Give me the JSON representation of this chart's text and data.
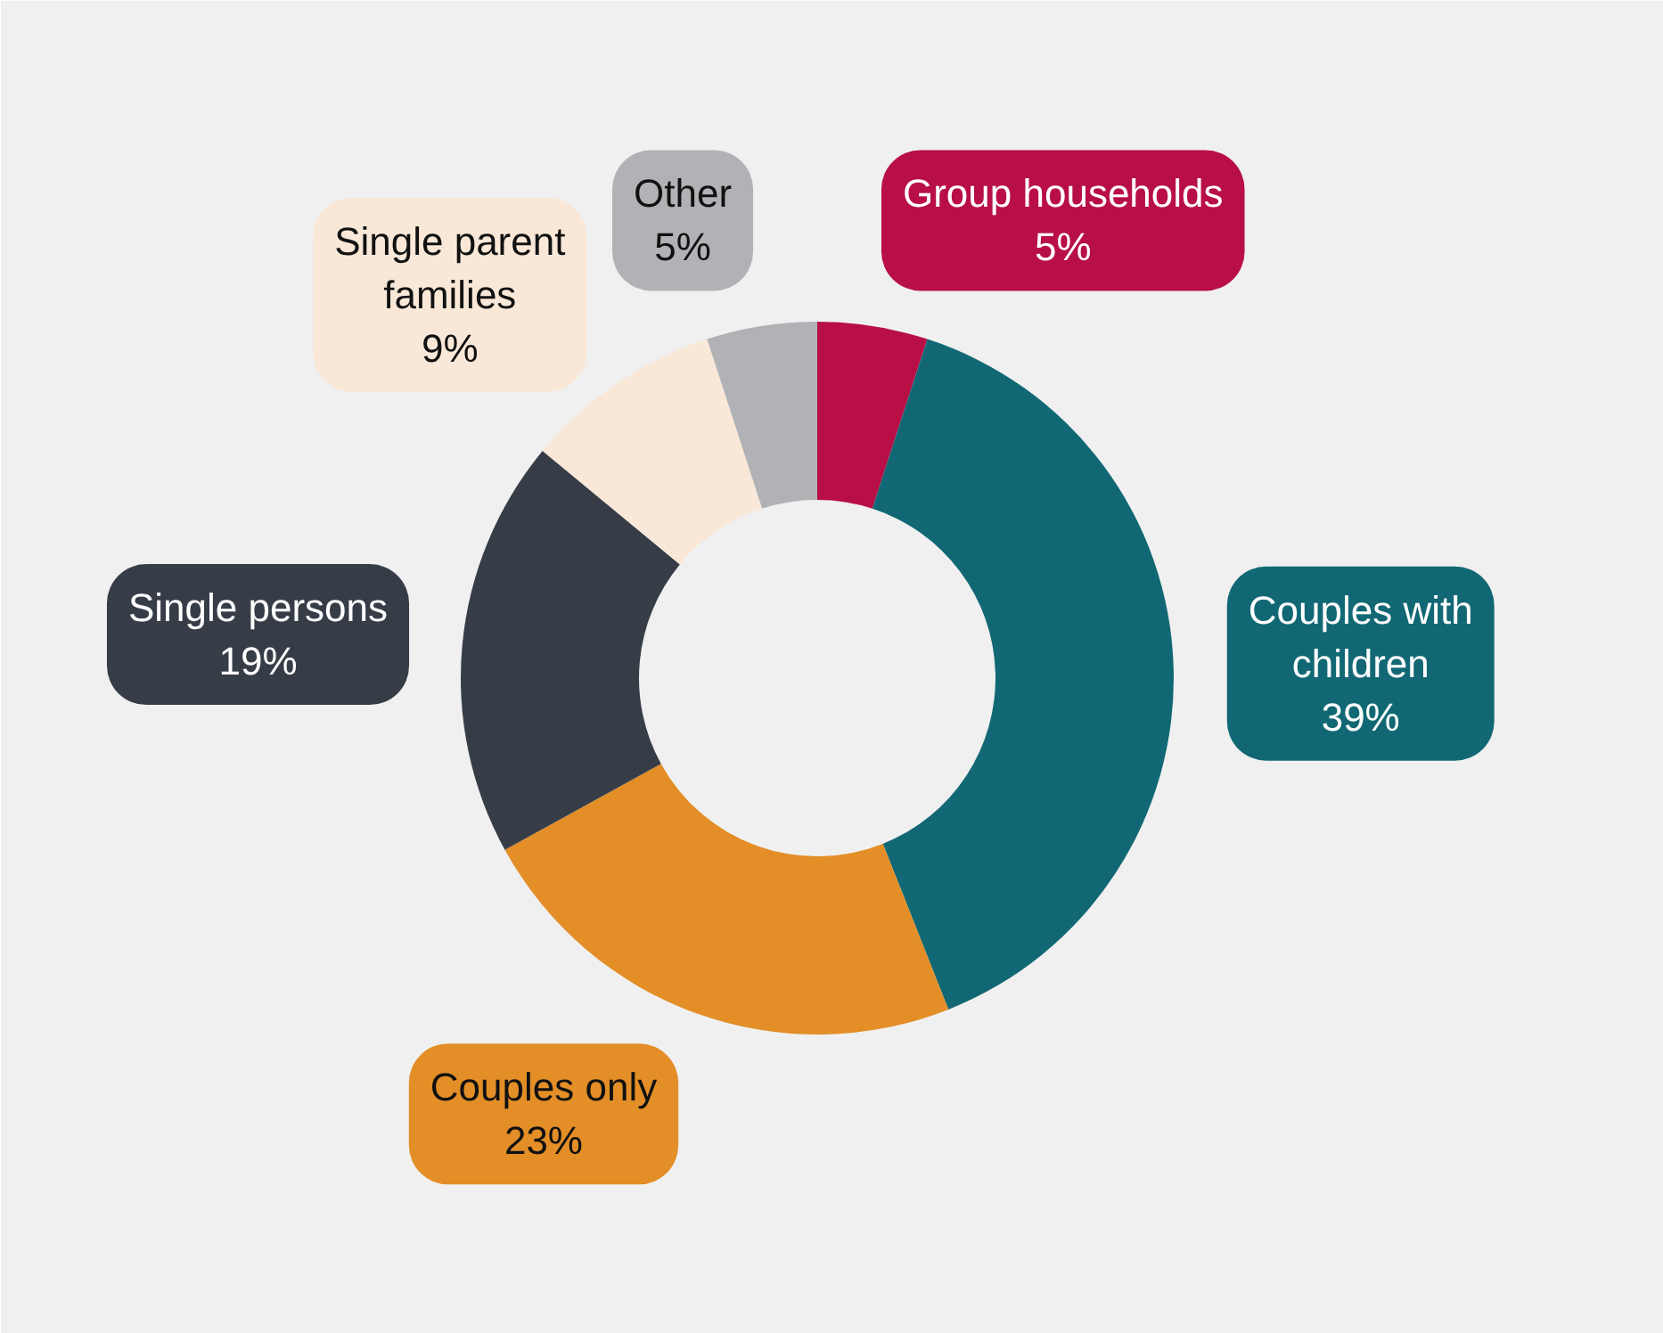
{
  "chart_data": {
    "type": "donut",
    "categories": [
      "Group households",
      "Couples with children",
      "Couples only",
      "Single persons",
      "Single parent families",
      "Other"
    ],
    "values": [
      5,
      39,
      23,
      19,
      9,
      5
    ],
    "colors": [
      "#b80f46",
      "#116874",
      "#e38e27",
      "#373d47",
      "#f9e8d8",
      "#b1b2b5"
    ],
    "value_labels": [
      "5%",
      "39%",
      "23%",
      "19%",
      "9%",
      "5%"
    ]
  }
}
